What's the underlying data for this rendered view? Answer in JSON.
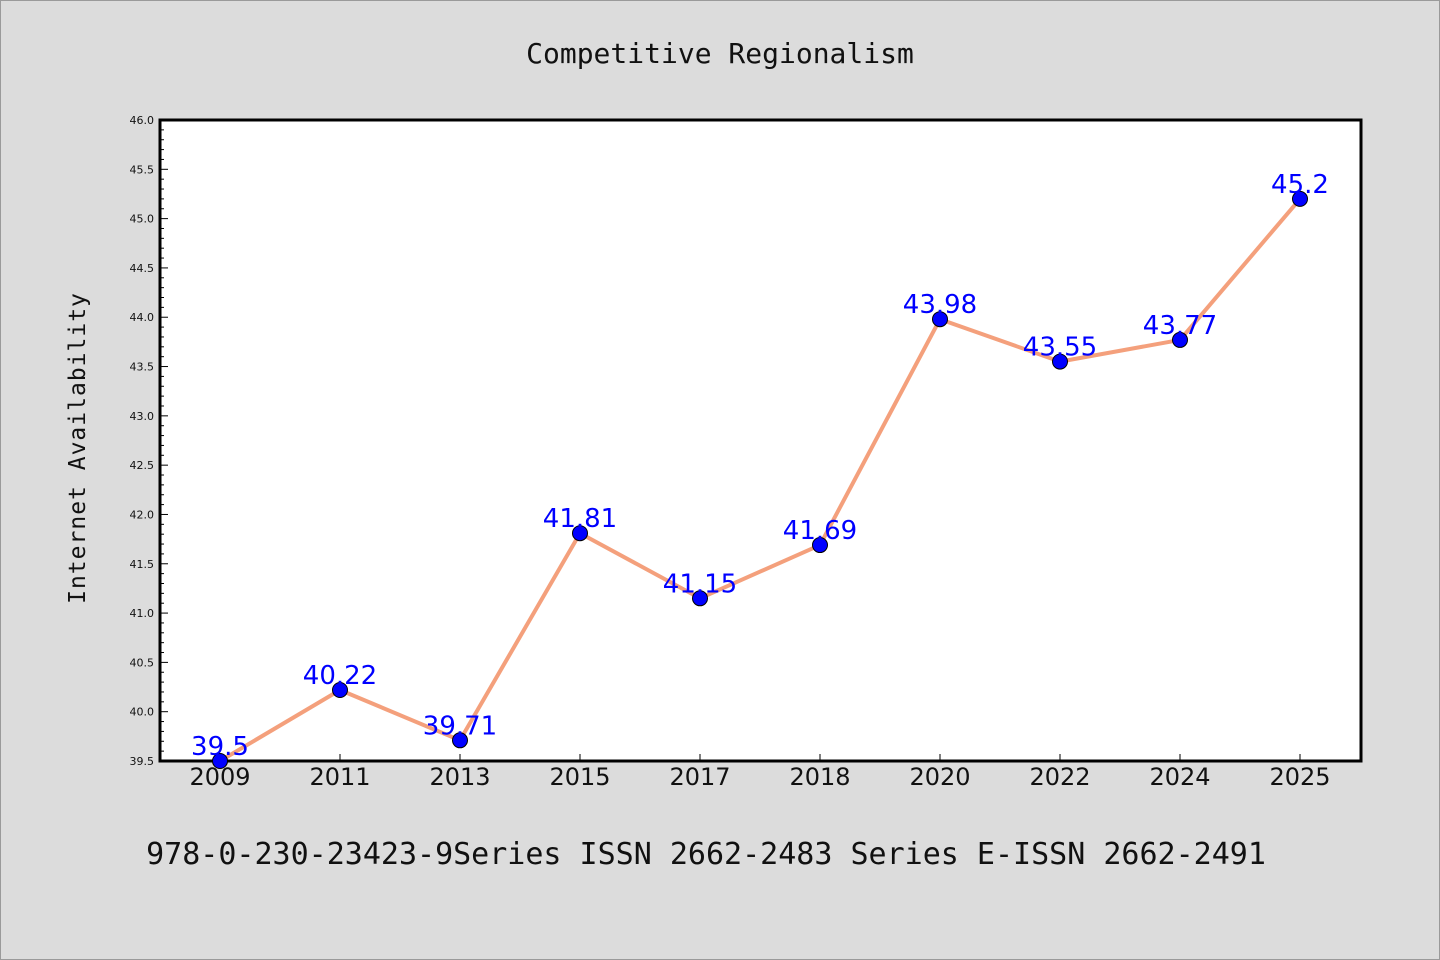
{
  "chart_data": {
    "type": "line",
    "title": "Competitive Regionalism",
    "xlabel": "",
    "ylabel": "Internet Availability",
    "categories": [
      "2009",
      "2011",
      "2013",
      "2015",
      "2017",
      "2018",
      "2020",
      "2022",
      "2024",
      "2025"
    ],
    "series": [
      {
        "values": [
          39.5,
          40.22,
          39.71,
          41.81,
          41.15,
          41.69,
          43.98,
          43.55,
          43.77,
          45.2
        ],
        "labels": [
          "39.5",
          "40.22",
          "39.71",
          "41.81",
          "41.15",
          "41.69",
          "43.98",
          "43.55",
          "43.77",
          "45.2"
        ],
        "line_color": "#f4a07c",
        "marker_color": "#0000ff",
        "label_color": "#0000ff"
      }
    ],
    "ylim": [
      39.5,
      46.0
    ],
    "yticks": [
      "39.5",
      "40.0",
      "40.5",
      "41.0",
      "41.5",
      "42.0",
      "42.5",
      "43.0",
      "43.5",
      "44.0",
      "44.5",
      "45.0",
      "45.5",
      "46.0"
    ],
    "grid": false,
    "legend": "none"
  },
  "footer": {
    "text": "978-0-230-23423-9Series ISSN 2662-2483 Series E-ISSN 2662-2491"
  },
  "colors": {
    "background": "#dcdcdc",
    "plot_area": "#ffffff"
  }
}
